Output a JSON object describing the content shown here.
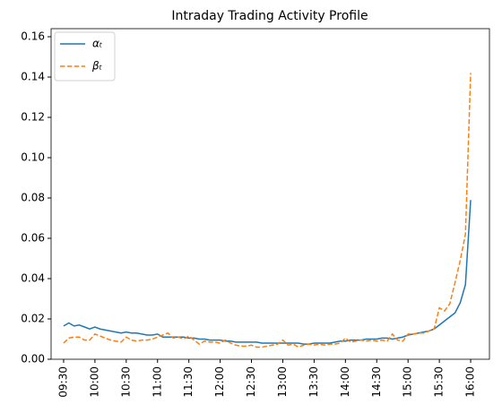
{
  "chart_data": {
    "type": "line",
    "title": "Intraday Trading Activity Profile",
    "x": [
      570,
      575,
      580,
      585,
      590,
      595,
      600,
      605,
      610,
      615,
      620,
      625,
      630,
      635,
      640,
      645,
      650,
      655,
      660,
      665,
      670,
      675,
      680,
      685,
      690,
      695,
      700,
      705,
      710,
      715,
      720,
      725,
      730,
      735,
      740,
      745,
      750,
      755,
      760,
      765,
      770,
      775,
      780,
      785,
      790,
      795,
      800,
      805,
      810,
      815,
      820,
      825,
      830,
      835,
      840,
      845,
      850,
      855,
      860,
      865,
      870,
      875,
      880,
      885,
      890,
      895,
      900,
      905,
      910,
      915,
      920,
      925,
      930,
      935,
      940,
      945,
      950,
      955,
      960
    ],
    "series": [
      {
        "name": "αₜ",
        "color": "#1f77b4",
        "dash": "solid",
        "values": [
          0.0165,
          0.018,
          0.0165,
          0.017,
          0.016,
          0.015,
          0.016,
          0.015,
          0.0145,
          0.014,
          0.0135,
          0.013,
          0.0135,
          0.013,
          0.013,
          0.0125,
          0.012,
          0.012,
          0.0125,
          0.011,
          0.011,
          0.011,
          0.011,
          0.011,
          0.0105,
          0.0105,
          0.01,
          0.01,
          0.0095,
          0.0095,
          0.0095,
          0.009,
          0.009,
          0.0085,
          0.0085,
          0.0085,
          0.0085,
          0.0085,
          0.008,
          0.008,
          0.008,
          0.008,
          0.008,
          0.008,
          0.008,
          0.008,
          0.0075,
          0.0075,
          0.008,
          0.008,
          0.008,
          0.008,
          0.0085,
          0.009,
          0.009,
          0.0095,
          0.0095,
          0.0095,
          0.01,
          0.01,
          0.01,
          0.0105,
          0.0105,
          0.01,
          0.0105,
          0.011,
          0.012,
          0.0125,
          0.013,
          0.0135,
          0.014,
          0.015,
          0.017,
          0.019,
          0.021,
          0.023,
          0.028,
          0.037,
          0.079
        ]
      },
      {
        "name": "βₜ",
        "color": "#ff7f0e",
        "dash": "dashed",
        "values": [
          0.008,
          0.0105,
          0.011,
          0.011,
          0.0095,
          0.0095,
          0.0125,
          0.0115,
          0.0105,
          0.0095,
          0.009,
          0.0085,
          0.011,
          0.0095,
          0.009,
          0.0095,
          0.0095,
          0.01,
          0.011,
          0.012,
          0.013,
          0.0105,
          0.011,
          0.01,
          0.0115,
          0.0095,
          0.0075,
          0.009,
          0.0085,
          0.0085,
          0.008,
          0.0095,
          0.008,
          0.007,
          0.0065,
          0.0065,
          0.007,
          0.006,
          0.006,
          0.0065,
          0.007,
          0.0075,
          0.0095,
          0.007,
          0.0075,
          0.006,
          0.007,
          0.0075,
          0.007,
          0.0075,
          0.007,
          0.0075,
          0.0075,
          0.008,
          0.0105,
          0.0085,
          0.009,
          0.0095,
          0.009,
          0.0095,
          0.009,
          0.0095,
          0.009,
          0.0125,
          0.0095,
          0.009,
          0.0125,
          0.0125,
          0.013,
          0.013,
          0.014,
          0.015,
          0.0255,
          0.024,
          0.0275,
          0.038,
          0.049,
          0.062,
          0.142
        ]
      }
    ],
    "xlim": [
      558,
      978
    ],
    "xticks": [
      {
        "value": 570,
        "label": "09:30"
      },
      {
        "value": 600,
        "label": "10:00"
      },
      {
        "value": 630,
        "label": "10:30"
      },
      {
        "value": 660,
        "label": "11:00"
      },
      {
        "value": 690,
        "label": "11:30"
      },
      {
        "value": 720,
        "label": "12:00"
      },
      {
        "value": 750,
        "label": "12:30"
      },
      {
        "value": 780,
        "label": "13:00"
      },
      {
        "value": 810,
        "label": "13:30"
      },
      {
        "value": 840,
        "label": "14:00"
      },
      {
        "value": 870,
        "label": "14:30"
      },
      {
        "value": 900,
        "label": "15:00"
      },
      {
        "value": 930,
        "label": "15:30"
      },
      {
        "value": 960,
        "label": "16:00"
      }
    ],
    "ylim": [
      0,
      0.164
    ],
    "yticks": [
      {
        "value": 0,
        "label": "0.00"
      },
      {
        "value": 0.02,
        "label": "0.02"
      },
      {
        "value": 0.04,
        "label": "0.04"
      },
      {
        "value": 0.06,
        "label": "0.06"
      },
      {
        "value": 0.08,
        "label": "0.08"
      },
      {
        "value": 0.1,
        "label": "0.10"
      },
      {
        "value": 0.12,
        "label": "0.12"
      },
      {
        "value": 0.14,
        "label": "0.14"
      },
      {
        "value": 0.16,
        "label": "0.16"
      }
    ],
    "legend": "upper left"
  }
}
